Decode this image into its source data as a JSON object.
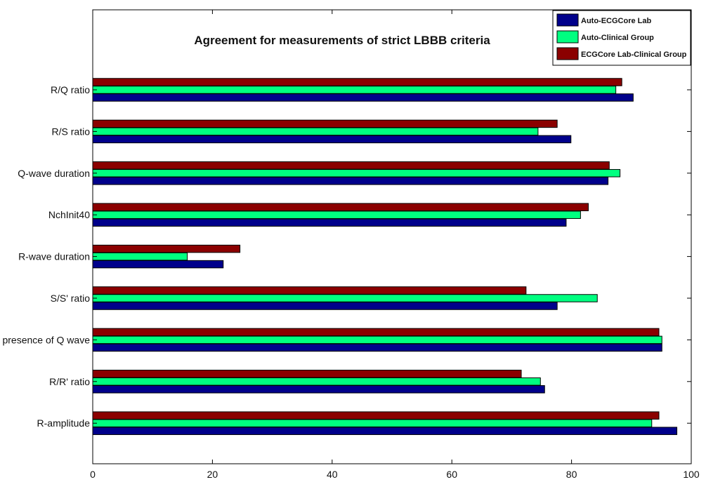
{
  "chart_data": {
    "type": "bar",
    "orientation": "horizontal",
    "title": "Agreement for measurements of strict LBBB criteria",
    "xlabel": "",
    "ylabel": "",
    "xlim": [
      0,
      100
    ],
    "xticks": [
      0,
      20,
      40,
      60,
      80,
      100
    ],
    "grid": false,
    "legend_position": "top-right",
    "categories": [
      "R/Q ratio",
      "R/S ratio",
      "Q-wave duration",
      "NchInit40",
      "R-wave duration",
      "S/S' ratio",
      "presence of Q wave",
      "R/R' ratio",
      "R-amplitude"
    ],
    "series": [
      {
        "name": "Auto-ECGCore Lab",
        "color": "#00008b",
        "values": [
          90.3,
          79.9,
          86.1,
          79.1,
          21.8,
          77.6,
          95.1,
          75.5,
          97.6
        ]
      },
      {
        "name": "Auto-Clinical Group",
        "color": "#00ff80",
        "values": [
          87.4,
          74.4,
          88.1,
          81.5,
          15.8,
          84.3,
          95.1,
          74.8,
          93.4
        ]
      },
      {
        "name": "ECGCore Lab-Clinical Group",
        "color": "#8b0000",
        "values": [
          88.4,
          77.6,
          86.3,
          82.8,
          24.6,
          72.4,
          94.6,
          71.6,
          94.6
        ]
      }
    ]
  }
}
